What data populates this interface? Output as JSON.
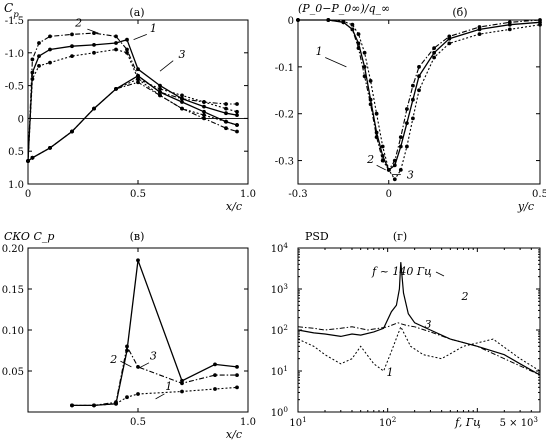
{
  "chart_data": [
    {
      "panel": "(а)",
      "type": "line",
      "ylabel": "C_p",
      "xlabel": "x/c",
      "xlim": [
        0,
        1
      ],
      "ylim": [
        1.0,
        -1.5
      ],
      "y_inverted": true,
      "xticks": [
        "0",
        "0.5",
        "1.0"
      ],
      "yticks": [
        "-1.5",
        "-1.0",
        "-0.5",
        "0",
        "0.5",
        "1.0"
      ],
      "grid": false,
      "series": [
        {
          "name": "1",
          "style": "solid",
          "surface": "upper",
          "x": [
            0,
            0.02,
            0.05,
            0.1,
            0.2,
            0.3,
            0.4,
            0.45,
            0.5,
            0.6,
            0.7,
            0.8,
            0.9,
            0.95
          ],
          "y": [
            0.65,
            -0.7,
            -0.95,
            -1.05,
            -1.1,
            -1.12,
            -1.15,
            -1.2,
            -0.75,
            -0.5,
            -0.3,
            -0.18,
            -0.08,
            -0.05
          ]
        },
        {
          "name": "1",
          "style": "solid",
          "surface": "lower",
          "x": [
            0,
            0.02,
            0.1,
            0.2,
            0.3,
            0.4,
            0.5,
            0.6,
            0.7,
            0.8,
            0.9,
            0.95
          ],
          "y": [
            0.65,
            0.6,
            0.45,
            0.2,
            -0.15,
            -0.45,
            -0.65,
            -0.4,
            -0.25,
            -0.1,
            0.05,
            0.1
          ]
        },
        {
          "name": "2",
          "style": "dash-dot",
          "surface": "upper",
          "x": [
            0,
            0.02,
            0.05,
            0.1,
            0.2,
            0.3,
            0.4,
            0.45,
            0.5,
            0.6,
            0.7,
            0.8,
            0.9,
            0.95
          ],
          "y": [
            0.65,
            -0.9,
            -1.15,
            -1.25,
            -1.28,
            -1.3,
            -1.25,
            -1.05,
            -0.65,
            -0.4,
            -0.3,
            -0.25,
            -0.22,
            -0.22
          ]
        },
        {
          "name": "2",
          "style": "dash-dot",
          "surface": "lower",
          "x": [
            0,
            0.02,
            0.1,
            0.2,
            0.3,
            0.4,
            0.5,
            0.6,
            0.7,
            0.8,
            0.9,
            0.95
          ],
          "y": [
            0.65,
            0.6,
            0.45,
            0.2,
            -0.15,
            -0.45,
            -0.55,
            -0.35,
            -0.15,
            0.0,
            0.15,
            0.2
          ]
        },
        {
          "name": "3",
          "style": "dotted",
          "surface": "upper",
          "x": [
            0,
            0.02,
            0.05,
            0.1,
            0.2,
            0.3,
            0.4,
            0.45,
            0.5,
            0.6,
            0.7,
            0.8,
            0.9,
            0.95
          ],
          "y": [
            0.65,
            -0.6,
            -0.8,
            -0.85,
            -0.95,
            -1.0,
            -1.05,
            -1.0,
            -0.6,
            -0.35,
            -0.15,
            -0.05,
            0.05,
            0.1
          ]
        },
        {
          "name": "3",
          "style": "dotted",
          "surface": "lower",
          "x": [
            0,
            0.02,
            0.1,
            0.2,
            0.3,
            0.4,
            0.5,
            0.6,
            0.7,
            0.8,
            0.9,
            0.95
          ],
          "y": [
            0.65,
            0.6,
            0.45,
            0.2,
            -0.15,
            -0.45,
            -0.6,
            -0.45,
            -0.35,
            -0.25,
            -0.15,
            -0.1
          ]
        }
      ],
      "annotations": [
        "1",
        "2",
        "3"
      ]
    },
    {
      "panel": "(б)",
      "type": "line",
      "ylabel": "(P_0−P_0∞)/q_∞",
      "xlabel": "y/c",
      "xlim": [
        -0.3,
        0.5
      ],
      "ylim": [
        -0.35,
        0
      ],
      "xticks": [
        "-0.3",
        "0",
        "0.5"
      ],
      "yticks": [
        "0",
        "-0.1",
        "-0.2",
        "-0.3"
      ],
      "grid": false,
      "series": [
        {
          "name": "1",
          "style": "solid",
          "x": [
            -0.3,
            -0.2,
            -0.15,
            -0.12,
            -0.1,
            -0.08,
            -0.06,
            -0.04,
            -0.02,
            0,
            0.02,
            0.04,
            0.06,
            0.08,
            0.1,
            0.15,
            0.2,
            0.3,
            0.4,
            0.5
          ],
          "y": [
            0,
            0,
            -0.005,
            -0.02,
            -0.05,
            -0.1,
            -0.17,
            -0.24,
            -0.29,
            -0.32,
            -0.31,
            -0.27,
            -0.22,
            -0.17,
            -0.12,
            -0.07,
            -0.04,
            -0.02,
            -0.01,
            -0.005
          ]
        },
        {
          "name": "2",
          "style": "dash-dot",
          "x": [
            -0.3,
            -0.2,
            -0.15,
            -0.12,
            -0.1,
            -0.08,
            -0.06,
            -0.04,
            -0.02,
            0,
            0.02,
            0.04,
            0.06,
            0.08,
            0.1,
            0.15,
            0.2,
            0.3,
            0.4,
            0.5
          ],
          "y": [
            0,
            0,
            -0.005,
            -0.02,
            -0.06,
            -0.12,
            -0.18,
            -0.25,
            -0.3,
            -0.32,
            -0.3,
            -0.25,
            -0.19,
            -0.14,
            -0.1,
            -0.06,
            -0.035,
            -0.015,
            -0.005,
            0
          ]
        },
        {
          "name": "3",
          "style": "dotted",
          "x": [
            -0.3,
            -0.2,
            -0.15,
            -0.12,
            -0.1,
            -0.08,
            -0.06,
            -0.04,
            -0.02,
            0,
            0.02,
            0.04,
            0.06,
            0.08,
            0.1,
            0.15,
            0.2,
            0.3,
            0.4,
            0.5
          ],
          "y": [
            0,
            0,
            -0.003,
            -0.01,
            -0.03,
            -0.07,
            -0.13,
            -0.2,
            -0.27,
            -0.32,
            -0.34,
            -0.32,
            -0.27,
            -0.21,
            -0.15,
            -0.08,
            -0.05,
            -0.03,
            -0.02,
            -0.01
          ]
        }
      ],
      "annotations": [
        "1",
        "2",
        "3"
      ]
    },
    {
      "panel": "(в)",
      "type": "line",
      "ylabel": "СКО C_p",
      "xlabel": "x/c",
      "xlim": [
        0,
        1
      ],
      "ylim": [
        0,
        0.2
      ],
      "xticks": [
        "0.5",
        "1.0"
      ],
      "yticks": [
        "0.20",
        "0.15",
        "0.10",
        "0.05"
      ],
      "grid": false,
      "series": [
        {
          "name": "1",
          "style": "dotted",
          "x": [
            0.2,
            0.3,
            0.4,
            0.45,
            0.5,
            0.7,
            0.85,
            0.95
          ],
          "y": [
            0.008,
            0.008,
            0.01,
            0.018,
            0.022,
            0.025,
            0.028,
            0.03
          ]
        },
        {
          "name": "2",
          "style": "dash-dot",
          "x": [
            0.2,
            0.3,
            0.4,
            0.45,
            0.5,
            0.7,
            0.85,
            0.95
          ],
          "y": [
            0.008,
            0.008,
            0.012,
            0.08,
            0.055,
            0.035,
            0.045,
            0.045
          ]
        },
        {
          "name": "3",
          "style": "solid",
          "x": [
            0.2,
            0.3,
            0.4,
            0.45,
            0.5,
            0.7,
            0.85,
            0.95
          ],
          "y": [
            0.008,
            0.008,
            0.01,
            0.075,
            0.185,
            0.038,
            0.058,
            0.055
          ]
        }
      ],
      "annotations": [
        "1",
        "2",
        "3"
      ]
    },
    {
      "panel": "(г)",
      "type": "line",
      "ylabel": "PSD",
      "xlabel": "f, Гц",
      "xscale": "log",
      "yscale": "log",
      "xlim": [
        10,
        5000
      ],
      "ylim": [
        1,
        10000
      ],
      "xticks": [
        "10^1",
        "10^2",
        "5 × 10^3"
      ],
      "yticks": [
        "10^0",
        "10^1",
        "10^2",
        "10^3",
        "10^4"
      ],
      "grid": false,
      "annotation_text": "f ~ 140 Гц",
      "series": [
        {
          "name": "1",
          "style": "dotted",
          "x": [
            10,
            15,
            20,
            30,
            40,
            50,
            70,
            90,
            110,
            140,
            180,
            250,
            400,
            700,
            1500,
            3000,
            5000
          ],
          "y": [
            60,
            40,
            25,
            15,
            20,
            40,
            15,
            10,
            30,
            120,
            40,
            25,
            20,
            40,
            60,
            20,
            10
          ]
        },
        {
          "name": "2",
          "style": "solid",
          "x": [
            10,
            15,
            20,
            30,
            40,
            50,
            70,
            90,
            110,
            125,
            135,
            140,
            150,
            170,
            200,
            300,
            500,
            1000,
            2000,
            3000,
            5000
          ],
          "y": [
            100,
            85,
            80,
            70,
            80,
            75,
            90,
            110,
            280,
            400,
            1000,
            4500,
            800,
            250,
            150,
            100,
            60,
            40,
            25,
            15,
            8
          ]
        },
        {
          "name": "3",
          "style": "dash-dot",
          "x": [
            10,
            15,
            20,
            30,
            40,
            60,
            80,
            100,
            130,
            160,
            200,
            300,
            500,
            1000,
            2000,
            5000
          ],
          "y": [
            120,
            110,
            100,
            110,
            120,
            100,
            110,
            120,
            150,
            130,
            120,
            90,
            60,
            40,
            20,
            8
          ]
        }
      ],
      "annotations": [
        "1",
        "2",
        "3"
      ]
    }
  ]
}
